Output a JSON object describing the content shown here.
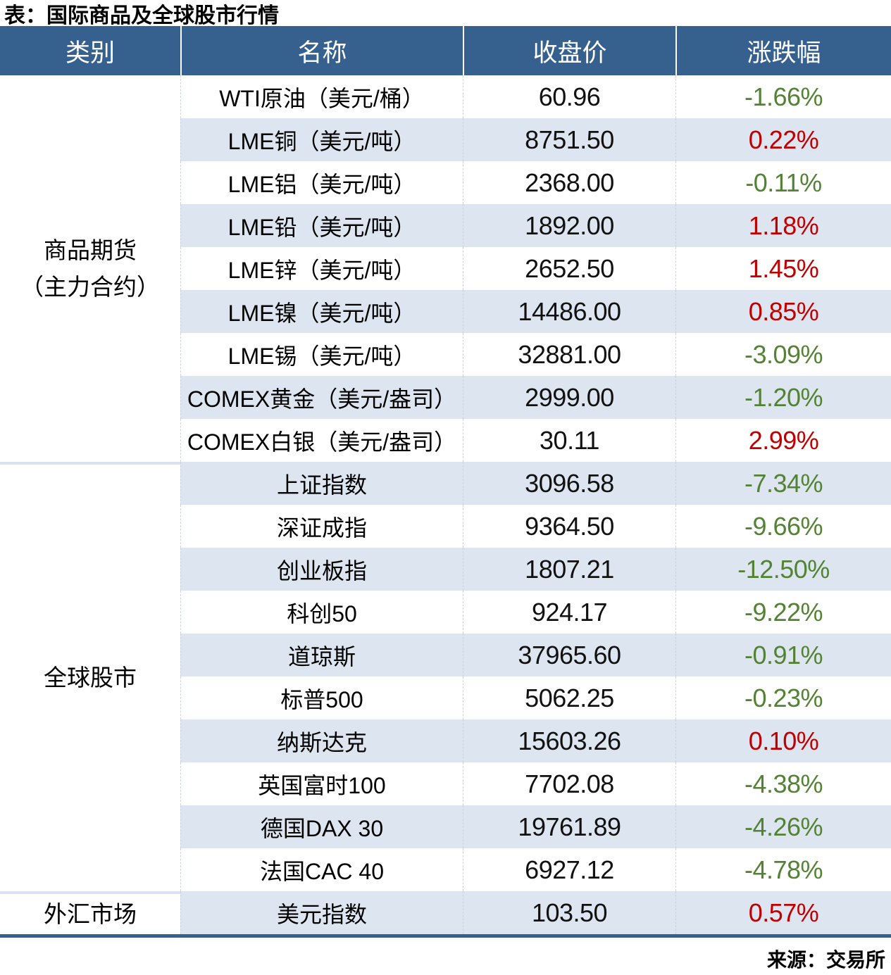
{
  "page": {
    "source": "来源：交易所"
  },
  "colors": {
    "header_bg": "#36618E",
    "row_alt_bg": "#DCE5F0",
    "up": "#C00000",
    "down": "#548235",
    "sep": "#D9E2EE"
  },
  "chart_data": {
    "type": "table",
    "title": "表：国际商品及全球股市行情",
    "columns": [
      "类别",
      "名称",
      "收盘价",
      "涨跌幅"
    ],
    "categories": [
      {
        "line1": "商品期货",
        "line2": "（主力合约）",
        "rowspan": 9
      },
      {
        "line1": "全球股市",
        "line2": "",
        "rowspan": 10
      },
      {
        "line1": "外汇市场",
        "line2": "",
        "rowspan": 1
      }
    ],
    "rows": [
      {
        "name": "WTI原油（美元/桶）",
        "close": "60.96",
        "change": "-1.66%",
        "direction": "down"
      },
      {
        "name": "LME铜（美元/吨）",
        "close": "8751.50",
        "change": "0.22%",
        "direction": "up"
      },
      {
        "name": "LME铝（美元/吨）",
        "close": "2368.00",
        "change": "-0.11%",
        "direction": "down"
      },
      {
        "name": "LME铅（美元/吨）",
        "close": "1892.00",
        "change": "1.18%",
        "direction": "up"
      },
      {
        "name": "LME锌（美元/吨）",
        "close": "2652.50",
        "change": "1.45%",
        "direction": "up"
      },
      {
        "name": "LME镍（美元/吨）",
        "close": "14486.00",
        "change": "0.85%",
        "direction": "up"
      },
      {
        "name": "LME锡（美元/吨）",
        "close": "32881.00",
        "change": "-3.09%",
        "direction": "down"
      },
      {
        "name": "COMEX黄金（美元/盎司）",
        "close": "2999.00",
        "change": "-1.20%",
        "direction": "down"
      },
      {
        "name": "COMEX白银（美元/盎司）",
        "close": "30.11",
        "change": "2.99%",
        "direction": "up"
      },
      {
        "name": "上证指数",
        "close": "3096.58",
        "change": "-7.34%",
        "direction": "down"
      },
      {
        "name": "深证成指",
        "close": "9364.50",
        "change": "-9.66%",
        "direction": "down"
      },
      {
        "name": "创业板指",
        "close": "1807.21",
        "change": "-12.50%",
        "direction": "down"
      },
      {
        "name": "科创50",
        "close": "924.17",
        "change": "-9.22%",
        "direction": "down"
      },
      {
        "name": "道琼斯",
        "close": "37965.60",
        "change": "-0.91%",
        "direction": "down"
      },
      {
        "name": "标普500",
        "close": "5062.25",
        "change": "-0.23%",
        "direction": "down"
      },
      {
        "name": "纳斯达克",
        "close": "15603.26",
        "change": "0.10%",
        "direction": "up"
      },
      {
        "name": "英国富时100",
        "close": "7702.08",
        "change": "-4.38%",
        "direction": "down"
      },
      {
        "name": "德国DAX 30",
        "close": "19761.89",
        "change": "-4.26%",
        "direction": "down"
      },
      {
        "name": "法国CAC 40",
        "close": "6927.12",
        "change": "-4.78%",
        "direction": "down"
      },
      {
        "name": "美元指数",
        "close": "103.50",
        "change": "0.57%",
        "direction": "up"
      }
    ]
  }
}
